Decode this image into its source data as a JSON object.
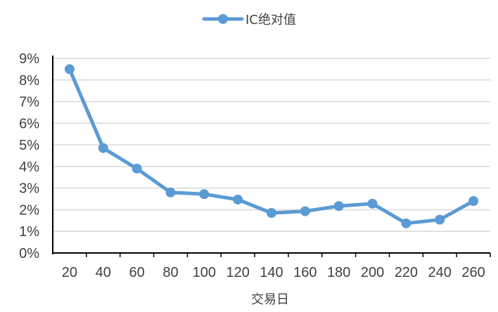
{
  "chart_data": {
    "type": "line",
    "x": [
      20,
      40,
      60,
      80,
      100,
      120,
      140,
      160,
      180,
      200,
      220,
      240,
      260
    ],
    "series": [
      {
        "name": "IC绝对值",
        "values": [
          8.5,
          4.85,
          3.9,
          2.8,
          2.72,
          2.47,
          1.85,
          1.93,
          2.17,
          2.28,
          1.37,
          1.54,
          2.4
        ],
        "color": "#5B9BD5"
      }
    ],
    "xlabel": "交易日",
    "ylabel": "",
    "ylim": [
      0,
      9
    ],
    "y_ticks": [
      "0%",
      "1%",
      "2%",
      "3%",
      "4%",
      "5%",
      "6%",
      "7%",
      "8%",
      "9%"
    ],
    "x_ticks": [
      "20",
      "40",
      "60",
      "80",
      "100",
      "120",
      "140",
      "160",
      "180",
      "200",
      "220",
      "240",
      "260"
    ],
    "grid": true,
    "legend_position": "top-center"
  }
}
